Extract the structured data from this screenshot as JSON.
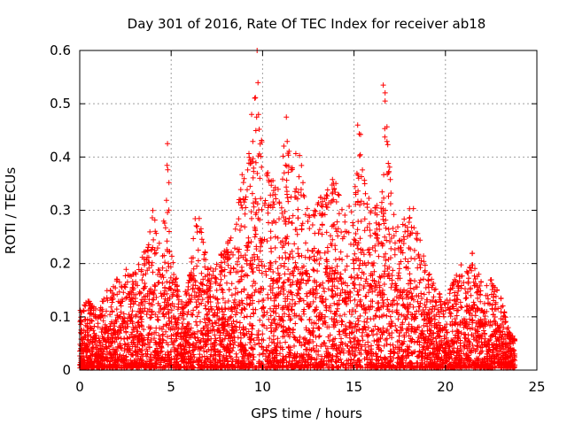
{
  "chart_data": {
    "type": "scatter",
    "title": "Day 301 of 2016, Rate Of TEC Index for receiver ab18",
    "xlabel": "GPS time / hours",
    "ylabel": "ROTI / TECUs",
    "xlim": [
      0,
      25
    ],
    "ylim": [
      0,
      0.6
    ],
    "x_ticks": [
      "0",
      "5",
      "10",
      "15",
      "20",
      "25"
    ],
    "y_ticks": [
      "0",
      "0.1",
      "0.2",
      "0.3",
      "0.4",
      "0.5",
      "0.6"
    ],
    "grid": true,
    "marker": "+",
    "color": "#ff0000",
    "series": [
      {
        "name": "ROTI",
        "envelope_hours": [
          0,
          0.5,
          1,
          1.5,
          2,
          2.5,
          3,
          3.5,
          4,
          4.5,
          4.8,
          5,
          5.5,
          6,
          6.4,
          7,
          7.5,
          8,
          8.5,
          9,
          9.5,
          9.7,
          10,
          10.5,
          11,
          11.3,
          11.5,
          12,
          12.5,
          13,
          13.5,
          14,
          14.3,
          15,
          15.3,
          15.5,
          16,
          16.5,
          16.7,
          17,
          17.5,
          18,
          18.3,
          18.5,
          19,
          19.5,
          20,
          20.5,
          21,
          21.5,
          22,
          22.5,
          23,
          23.5,
          23.8
        ],
        "envelope_roti": [
          0.12,
          0.13,
          0.11,
          0.15,
          0.17,
          0.19,
          0.18,
          0.22,
          0.3,
          0.22,
          0.42,
          0.25,
          0.12,
          0.17,
          0.32,
          0.19,
          0.2,
          0.24,
          0.26,
          0.4,
          0.48,
          0.6,
          0.4,
          0.36,
          0.38,
          0.47,
          0.4,
          0.41,
          0.32,
          0.31,
          0.35,
          0.37,
          0.3,
          0.32,
          0.46,
          0.4,
          0.31,
          0.32,
          0.53,
          0.35,
          0.25,
          0.32,
          0.32,
          0.26,
          0.19,
          0.15,
          0.13,
          0.17,
          0.21,
          0.22,
          0.16,
          0.17,
          0.14,
          0.07,
          0.06
        ],
        "peaks": [
          {
            "x": 4.8,
            "y": 0.425
          },
          {
            "x": 9.4,
            "y": 0.48
          },
          {
            "x": 9.7,
            "y": 0.6
          },
          {
            "x": 11.3,
            "y": 0.475
          },
          {
            "x": 15.2,
            "y": 0.46
          },
          {
            "x": 16.6,
            "y": 0.535
          },
          {
            "x": 16.7,
            "y": 0.505
          }
        ]
      }
    ]
  }
}
